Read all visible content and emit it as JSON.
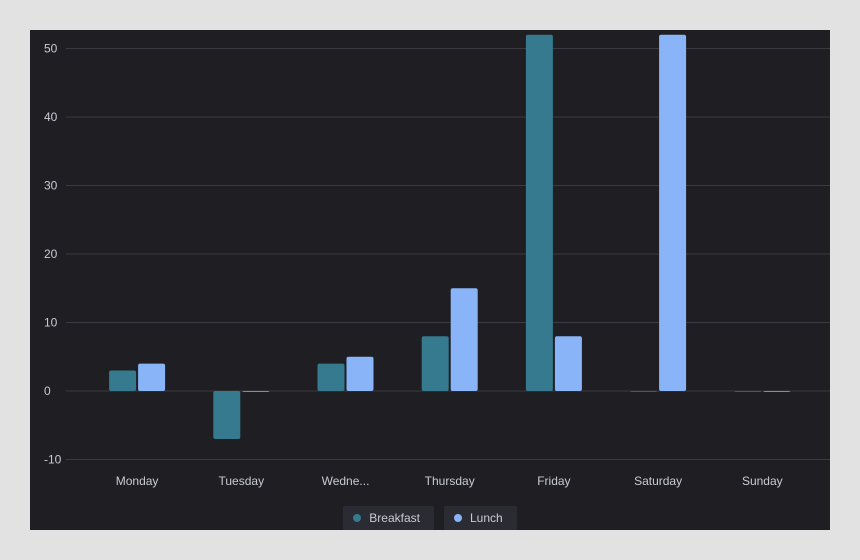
{
  "chart_data": {
    "type": "bar",
    "categories": [
      "Monday",
      "Tuesday",
      "Wedne...",
      "Thursday",
      "Friday",
      "Saturday",
      "Sunday"
    ],
    "series": [
      {
        "name": "Breakfast",
        "values": [
          3,
          -7,
          4,
          8,
          52,
          0,
          0
        ],
        "color": "#357a8e"
      },
      {
        "name": "Lunch",
        "values": [
          4,
          0,
          5,
          15,
          8,
          52,
          0
        ],
        "color": "#8ab4f8"
      }
    ],
    "yticks": [
      -10,
      0,
      10,
      20,
      30,
      40,
      50
    ],
    "ylim": [
      -10,
      52
    ],
    "grid": true,
    "legend_position": "bottom-center"
  },
  "colors": {
    "background": "#1e1e23",
    "grid": "#3a3b42",
    "axis_text": "#c9cbd4"
  }
}
